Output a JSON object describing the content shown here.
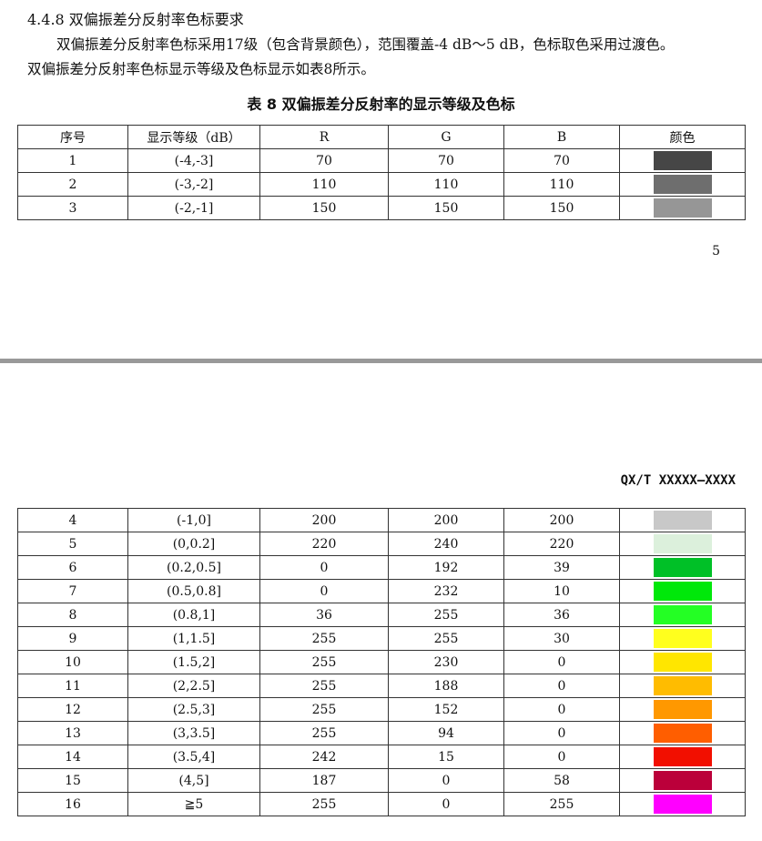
{
  "section": {
    "heading": "4.4.8 双偏振差分反射率色标要求",
    "para1": "双偏振差分反射率色标采用17级（包含背景颜色），范围覆盖-4 dB～5 dB，色标取色采用过渡色。",
    "para2": "双偏振差分反射率色标显示等级及色标显示如表8所示。"
  },
  "table": {
    "caption": "表 8 双偏振差分反射率的显示等级及色标",
    "headers": [
      "序号",
      "显示等级（dB）",
      "R",
      "G",
      "B",
      "颜色"
    ],
    "rows_page1": [
      {
        "no": "1",
        "level": "(-4,-3]",
        "r": "70",
        "g": "70",
        "b": "70",
        "color": "#464646"
      },
      {
        "no": "2",
        "level": "(-3,-2]",
        "r": "110",
        "g": "110",
        "b": "110",
        "color": "#6e6e6e"
      },
      {
        "no": "3",
        "level": "(-2,-1]",
        "r": "150",
        "g": "150",
        "b": "150",
        "color": "#969696"
      }
    ],
    "rows_page2": [
      {
        "no": "4",
        "level": "(-1,0]",
        "r": "200",
        "g": "200",
        "b": "200",
        "color": "#c8c8c8"
      },
      {
        "no": "5",
        "level": "(0,0.2]",
        "r": "220",
        "g": "240",
        "b": "220",
        "color": "#dcf0dc"
      },
      {
        "no": "6",
        "level": "(0.2,0.5]",
        "r": "0",
        "g": "192",
        "b": "39",
        "color": "#00c027"
      },
      {
        "no": "7",
        "level": "(0.5,0.8]",
        "r": "0",
        "g": "232",
        "b": "10",
        "color": "#00e80a"
      },
      {
        "no": "8",
        "level": "(0.8,1]",
        "r": "36",
        "g": "255",
        "b": "36",
        "color": "#24ff24"
      },
      {
        "no": "9",
        "level": "(1,1.5]",
        "r": "255",
        "g": "255",
        "b": "30",
        "color": "#ffff1e"
      },
      {
        "no": "10",
        "level": "(1.5,2]",
        "r": "255",
        "g": "230",
        "b": "0",
        "color": "#ffe600"
      },
      {
        "no": "11",
        "level": "(2,2.5]",
        "r": "255",
        "g": "188",
        "b": "0",
        "color": "#ffbc00"
      },
      {
        "no": "12",
        "level": "(2.5,3]",
        "r": "255",
        "g": "152",
        "b": "0",
        "color": "#ff9800"
      },
      {
        "no": "13",
        "level": "(3,3.5]",
        "r": "255",
        "g": "94",
        "b": "0",
        "color": "#ff5e00"
      },
      {
        "no": "14",
        "level": "(3.5,4]",
        "r": "242",
        "g": "15",
        "b": "0",
        "color": "#f20f00"
      },
      {
        "no": "15",
        "level": "(4,5]",
        "r": "187",
        "g": "0",
        "b": "58",
        "color": "#bb003a"
      },
      {
        "no": "16",
        "level": "≧5",
        "r": "255",
        "g": "0",
        "b": "255",
        "color": "#ff00ff"
      }
    ]
  },
  "page_number": "5",
  "standard_code": "QX/T XXXXX—XXXX"
}
